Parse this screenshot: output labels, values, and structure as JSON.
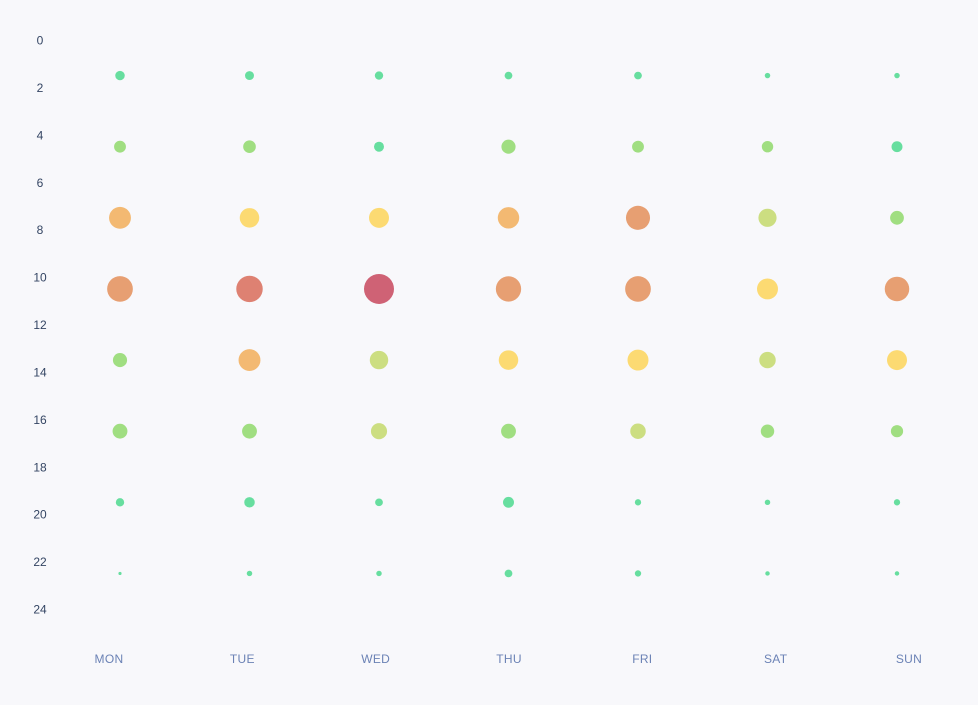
{
  "chart_data": {
    "type": "scatter",
    "title": "",
    "xlabel": "",
    "ylabel": "",
    "categories": [
      "MON",
      "TUE",
      "WED",
      "THU",
      "FRI",
      "SAT",
      "SUN"
    ],
    "y_ticks": [
      "0",
      "2",
      "4",
      "6",
      "8",
      "10",
      "12",
      "14",
      "16",
      "18",
      "20",
      "22",
      "24"
    ],
    "ylim": [
      0,
      24
    ],
    "grid": false,
    "legend": "none",
    "size_encodes": "value",
    "color_scale": [
      "#5fdc9a",
      "#9bdc7a",
      "#c9dc7a",
      "#fcd86a",
      "#f2b56a",
      "#e69a6a",
      "#dc7a6a",
      "#cc5a6e"
    ],
    "points": [
      {
        "category": "MON",
        "y": 1.5,
        "value": 9
      },
      {
        "category": "MON",
        "y": 4.5,
        "value": 14
      },
      {
        "category": "MON",
        "y": 7.5,
        "value": 48
      },
      {
        "category": "MON",
        "y": 10.5,
        "value": 66
      },
      {
        "category": "MON",
        "y": 13.5,
        "value": 20
      },
      {
        "category": "MON",
        "y": 16.5,
        "value": 22
      },
      {
        "category": "MON",
        "y": 19.5,
        "value": 7
      },
      {
        "category": "MON",
        "y": 22.5,
        "value": 1
      },
      {
        "category": "TUE",
        "y": 1.5,
        "value": 8
      },
      {
        "category": "TUE",
        "y": 4.5,
        "value": 16
      },
      {
        "category": "TUE",
        "y": 7.5,
        "value": 38
      },
      {
        "category": "TUE",
        "y": 10.5,
        "value": 70
      },
      {
        "category": "TUE",
        "y": 13.5,
        "value": 48
      },
      {
        "category": "TUE",
        "y": 16.5,
        "value": 22
      },
      {
        "category": "TUE",
        "y": 19.5,
        "value": 11
      },
      {
        "category": "TUE",
        "y": 22.5,
        "value": 3
      },
      {
        "category": "WED",
        "y": 1.5,
        "value": 7
      },
      {
        "category": "WED",
        "y": 4.5,
        "value": 10
      },
      {
        "category": "WED",
        "y": 7.5,
        "value": 40
      },
      {
        "category": "WED",
        "y": 10.5,
        "value": 90
      },
      {
        "category": "WED",
        "y": 13.5,
        "value": 34
      },
      {
        "category": "WED",
        "y": 16.5,
        "value": 26
      },
      {
        "category": "WED",
        "y": 19.5,
        "value": 6
      },
      {
        "category": "WED",
        "y": 22.5,
        "value": 3
      },
      {
        "category": "THU",
        "y": 1.5,
        "value": 6
      },
      {
        "category": "THU",
        "y": 4.5,
        "value": 20
      },
      {
        "category": "THU",
        "y": 7.5,
        "value": 46
      },
      {
        "category": "THU",
        "y": 10.5,
        "value": 64
      },
      {
        "category": "THU",
        "y": 13.5,
        "value": 38
      },
      {
        "category": "THU",
        "y": 16.5,
        "value": 22
      },
      {
        "category": "THU",
        "y": 19.5,
        "value": 12
      },
      {
        "category": "THU",
        "y": 22.5,
        "value": 6
      },
      {
        "category": "FRI",
        "y": 1.5,
        "value": 6
      },
      {
        "category": "FRI",
        "y": 4.5,
        "value": 14
      },
      {
        "category": "FRI",
        "y": 7.5,
        "value": 58
      },
      {
        "category": "FRI",
        "y": 10.5,
        "value": 66
      },
      {
        "category": "FRI",
        "y": 13.5,
        "value": 44
      },
      {
        "category": "FRI",
        "y": 16.5,
        "value": 24
      },
      {
        "category": "FRI",
        "y": 19.5,
        "value": 4
      },
      {
        "category": "FRI",
        "y": 22.5,
        "value": 4
      },
      {
        "category": "SAT",
        "y": 1.5,
        "value": 3
      },
      {
        "category": "SAT",
        "y": 4.5,
        "value": 13
      },
      {
        "category": "SAT",
        "y": 7.5,
        "value": 33
      },
      {
        "category": "SAT",
        "y": 10.5,
        "value": 44
      },
      {
        "category": "SAT",
        "y": 13.5,
        "value": 27
      },
      {
        "category": "SAT",
        "y": 16.5,
        "value": 18
      },
      {
        "category": "SAT",
        "y": 19.5,
        "value": 3
      },
      {
        "category": "SAT",
        "y": 22.5,
        "value": 2
      },
      {
        "category": "SUN",
        "y": 1.5,
        "value": 3
      },
      {
        "category": "SUN",
        "y": 4.5,
        "value": 12
      },
      {
        "category": "SUN",
        "y": 7.5,
        "value": 19
      },
      {
        "category": "SUN",
        "y": 10.5,
        "value": 60
      },
      {
        "category": "SUN",
        "y": 13.5,
        "value": 40
      },
      {
        "category": "SUN",
        "y": 16.5,
        "value": 15
      },
      {
        "category": "SUN",
        "y": 19.5,
        "value": 4
      },
      {
        "category": "SUN",
        "y": 22.5,
        "value": 2
      }
    ]
  }
}
